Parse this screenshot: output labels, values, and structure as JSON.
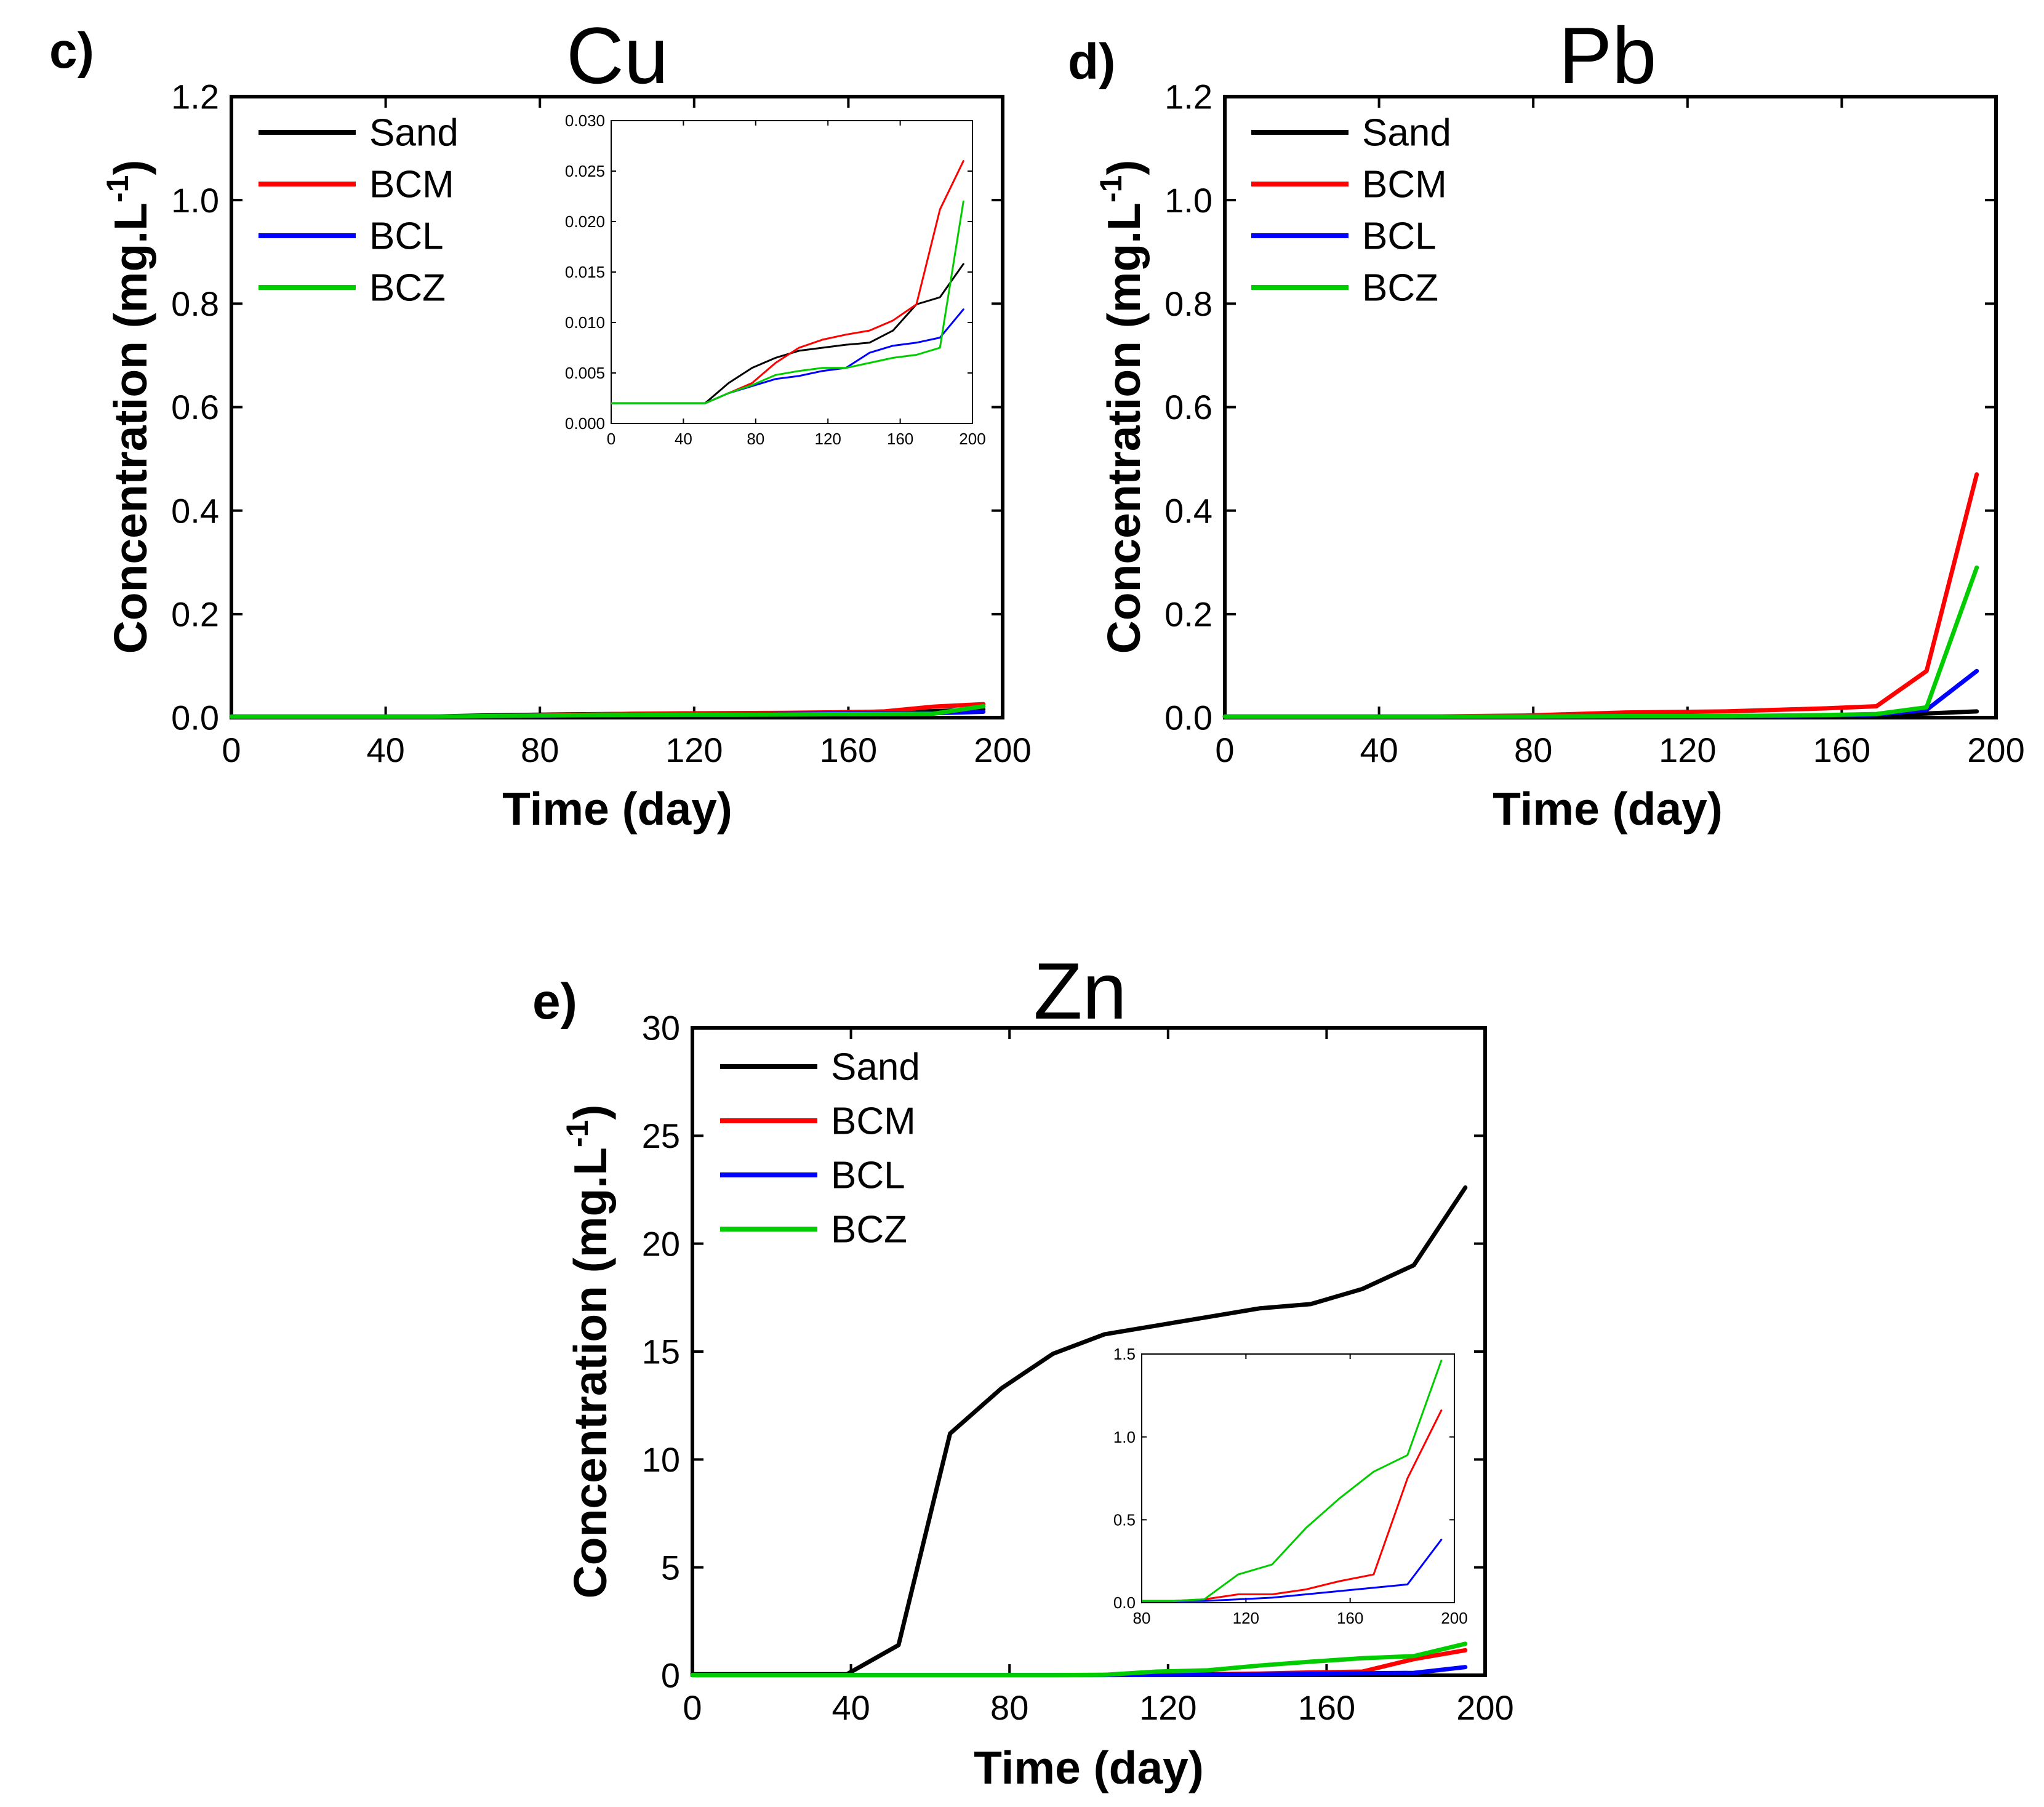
{
  "colors": {
    "Sand": "#000000",
    "BCM": "#ff0000",
    "BCL": "#0000ff",
    "BCZ": "#00cc00"
  },
  "chart_data": [
    {
      "id": "cu",
      "type": "line",
      "panel_label": "c)",
      "title": "Cu",
      "xlabel": "Time (day)",
      "ylabel": "Concentration (mg.L",
      "ylabel_sup": "-1",
      "ylabel_close": ")",
      "xlim": [
        0,
        200
      ],
      "ylim": [
        0,
        1.2
      ],
      "xticks": [
        0,
        40,
        80,
        120,
        160,
        200
      ],
      "yticks": [
        0.0,
        0.2,
        0.4,
        0.6,
        0.8,
        1.0,
        1.2
      ],
      "ytick_decimals": 1,
      "legend": [
        "Sand",
        "BCM",
        "BCL",
        "BCZ"
      ],
      "legend_position": "top-left",
      "series": [
        {
          "name": "Sand",
          "x": [
            0,
            13,
            26,
            39,
            52,
            65,
            78,
            91,
            104,
            117,
            130,
            143,
            156,
            169,
            182,
            195
          ],
          "y": [
            0.002,
            0.002,
            0.002,
            0.002,
            0.002,
            0.004,
            0.0055,
            0.0065,
            0.0072,
            0.0075,
            0.0078,
            0.008,
            0.0092,
            0.0118,
            0.0125,
            0.0158
          ]
        },
        {
          "name": "BCM",
          "x": [
            0,
            13,
            26,
            39,
            52,
            65,
            78,
            91,
            104,
            117,
            130,
            143,
            156,
            169,
            182,
            195
          ],
          "y": [
            0.002,
            0.002,
            0.002,
            0.002,
            0.002,
            0.003,
            0.004,
            0.006,
            0.0075,
            0.0083,
            0.0088,
            0.0092,
            0.0102,
            0.0118,
            0.0212,
            0.026
          ]
        },
        {
          "name": "BCL",
          "x": [
            0,
            13,
            26,
            39,
            52,
            65,
            78,
            91,
            104,
            117,
            130,
            143,
            156,
            169,
            182,
            195
          ],
          "y": [
            0.002,
            0.002,
            0.002,
            0.002,
            0.002,
            0.003,
            0.0037,
            0.0044,
            0.0047,
            0.0052,
            0.0055,
            0.007,
            0.0077,
            0.008,
            0.0085,
            0.0113
          ]
        },
        {
          "name": "BCZ",
          "x": [
            0,
            13,
            26,
            39,
            52,
            65,
            78,
            91,
            104,
            117,
            130,
            143,
            156,
            169,
            182,
            195
          ],
          "y": [
            0.002,
            0.002,
            0.002,
            0.002,
            0.002,
            0.003,
            0.0038,
            0.0048,
            0.0052,
            0.0055,
            0.0055,
            0.006,
            0.0065,
            0.0068,
            0.0075,
            0.022
          ]
        }
      ],
      "inset": {
        "xlim": [
          0,
          200
        ],
        "ylim": [
          0,
          0.03
        ],
        "xticks": [
          0,
          40,
          80,
          120,
          160,
          200
        ],
        "yticks": [
          0.0,
          0.005,
          0.01,
          0.015,
          0.02,
          0.025,
          0.03
        ],
        "ytick_decimals": 3
      }
    },
    {
      "id": "pb",
      "type": "line",
      "panel_label": "d)",
      "title": "Pb",
      "xlabel": "Time (day)",
      "ylabel": "Concentration (mg.L",
      "ylabel_sup": "-1",
      "ylabel_close": ")",
      "xlim": [
        0,
        200
      ],
      "ylim": [
        0,
        1.2
      ],
      "xticks": [
        0,
        40,
        80,
        120,
        160,
        200
      ],
      "yticks": [
        0.0,
        0.2,
        0.4,
        0.6,
        0.8,
        1.0,
        1.2
      ],
      "ytick_decimals": 1,
      "legend": [
        "Sand",
        "BCM",
        "BCL",
        "BCZ"
      ],
      "legend_position": "top-left",
      "series": [
        {
          "name": "Sand",
          "x": [
            0,
            26,
            52,
            78,
            104,
            130,
            156,
            169,
            182,
            195
          ],
          "y": [
            0.002,
            0.002,
            0.002,
            0.002,
            0.003,
            0.003,
            0.004,
            0.005,
            0.008,
            0.012
          ]
        },
        {
          "name": "BCM",
          "x": [
            0,
            26,
            52,
            78,
            104,
            130,
            156,
            169,
            182,
            195
          ],
          "y": [
            0.002,
            0.002,
            0.002,
            0.004,
            0.01,
            0.012,
            0.018,
            0.022,
            0.09,
            0.47
          ]
        },
        {
          "name": "BCL",
          "x": [
            0,
            26,
            52,
            78,
            104,
            130,
            156,
            169,
            182,
            195
          ],
          "y": [
            0.002,
            0.002,
            0.002,
            0.002,
            0.003,
            0.003,
            0.004,
            0.006,
            0.015,
            0.09
          ]
        },
        {
          "name": "BCZ",
          "x": [
            0,
            26,
            52,
            78,
            104,
            130,
            156,
            169,
            182,
            195
          ],
          "y": [
            0.002,
            0.002,
            0.002,
            0.002,
            0.003,
            0.003,
            0.005,
            0.007,
            0.02,
            0.29
          ]
        }
      ]
    },
    {
      "id": "zn",
      "type": "line",
      "panel_label": "e)",
      "title": "Zn",
      "xlabel": "Time (day)",
      "ylabel": "Concentration (mg.L",
      "ylabel_sup": "-1",
      "ylabel_close": ")",
      "xlim": [
        0,
        200
      ],
      "ylim": [
        0,
        30
      ],
      "xticks": [
        0,
        40,
        80,
        120,
        160,
        200
      ],
      "yticks": [
        0,
        5,
        10,
        15,
        20,
        25,
        30
      ],
      "ytick_decimals": 0,
      "legend": [
        "Sand",
        "BCM",
        "BCL",
        "BCZ"
      ],
      "legend_position": "top-left",
      "series": [
        {
          "name": "Sand",
          "x": [
            0,
            13,
            26,
            39,
            52,
            65,
            78,
            91,
            104,
            117,
            130,
            143,
            156,
            169,
            182,
            195
          ],
          "y": [
            0.05,
            0.05,
            0.05,
            0.05,
            1.4,
            11.2,
            13.3,
            14.9,
            15.8,
            16.2,
            16.6,
            17.0,
            17.2,
            17.9,
            19.0,
            22.6
          ]
        },
        {
          "name": "BCM",
          "x": [
            0,
            13,
            26,
            39,
            52,
            65,
            78,
            91,
            104,
            117,
            130,
            143,
            156,
            169,
            182,
            195
          ],
          "y": [
            0.01,
            0.01,
            0.01,
            0.01,
            0.01,
            0.01,
            0.01,
            0.01,
            0.02,
            0.05,
            0.05,
            0.08,
            0.13,
            0.17,
            0.75,
            1.16
          ]
        },
        {
          "name": "BCL",
          "x": [
            0,
            13,
            26,
            39,
            52,
            65,
            78,
            91,
            104,
            117,
            130,
            143,
            156,
            169,
            182,
            195
          ],
          "y": [
            0.01,
            0.01,
            0.01,
            0.01,
            0.01,
            0.01,
            0.01,
            0.01,
            0.01,
            0.02,
            0.03,
            0.05,
            0.07,
            0.09,
            0.11,
            0.38
          ]
        },
        {
          "name": "BCZ",
          "x": [
            0,
            13,
            26,
            39,
            52,
            65,
            78,
            91,
            104,
            117,
            130,
            143,
            156,
            169,
            182,
            195
          ],
          "y": [
            0.01,
            0.01,
            0.01,
            0.01,
            0.01,
            0.01,
            0.01,
            0.01,
            0.02,
            0.17,
            0.23,
            0.45,
            0.63,
            0.79,
            0.89,
            1.46
          ]
        }
      ],
      "inset": {
        "xlim": [
          80,
          200
        ],
        "ylim": [
          0,
          1.5
        ],
        "xticks": [
          80,
          120,
          160,
          200
        ],
        "yticks": [
          0.0,
          0.5,
          1.0,
          1.5
        ],
        "ytick_decimals": 1
      }
    }
  ]
}
